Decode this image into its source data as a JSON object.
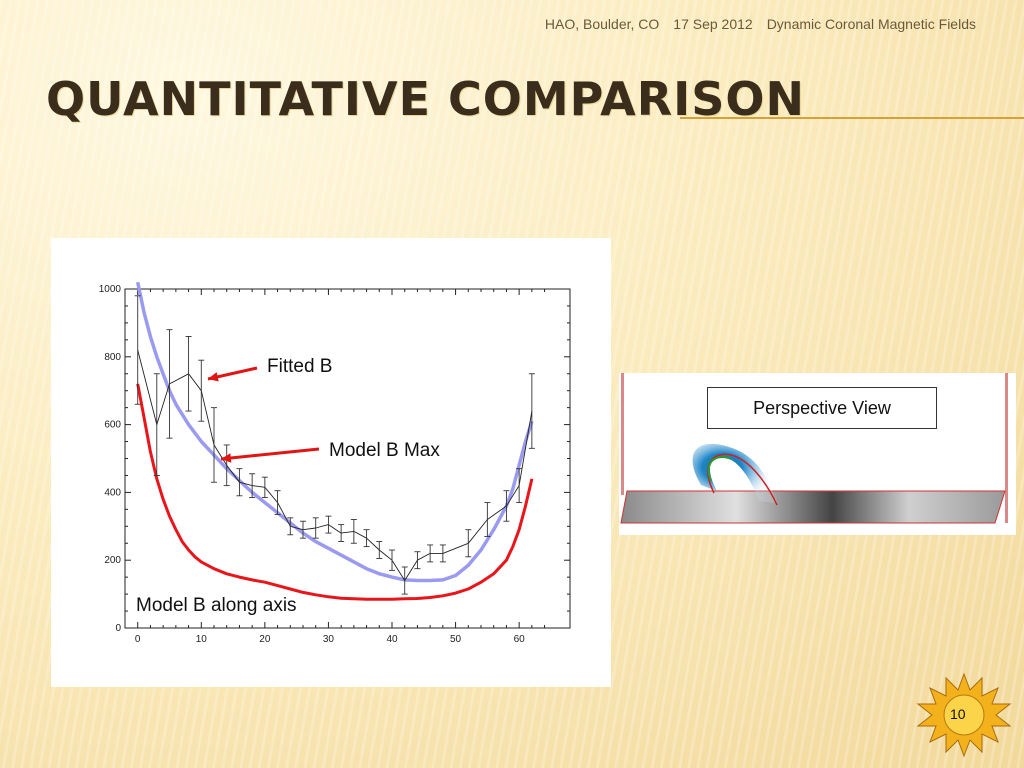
{
  "header": {
    "location": "HAO, Boulder, CO",
    "date": "17 Sep 2012",
    "event": "Dynamic Coronal Magnetic Fields"
  },
  "title": "Quantitative Comparison",
  "colors": {
    "accent_rule": "#d5a23a",
    "title": "#3a2d1c",
    "model_max": "#9a9af0",
    "model_axis": "#e8161b",
    "fitted": "#222222",
    "arrow": "#e01515"
  },
  "annotations": {
    "fitted_b": "Fitted B",
    "model_b_max": "Model B Max",
    "model_b_along_axis": "Model B along axis"
  },
  "perspective": {
    "label": "Perspective View"
  },
  "page_number": "10",
  "chart_data": {
    "type": "line",
    "title": "",
    "xlabel": "",
    "ylabel": "",
    "xlim": [
      -2,
      68
    ],
    "ylim": [
      0,
      1000
    ],
    "x_ticks": [
      0,
      10,
      20,
      30,
      40,
      50,
      60
    ],
    "y_ticks": [
      0,
      200,
      400,
      600,
      800,
      1000
    ],
    "grid": false,
    "series": [
      {
        "key": "model_max",
        "color": "#9a9af0",
        "x": [
          0,
          1,
          2,
          3,
          4,
          5,
          6,
          8,
          10,
          12,
          14,
          16,
          18,
          20,
          22,
          24,
          26,
          28,
          30,
          32,
          34,
          36,
          38,
          40,
          42,
          44,
          46,
          48,
          50,
          52,
          54,
          56,
          58,
          59,
          60,
          61,
          62
        ],
        "y": [
          1020,
          930,
          860,
          800,
          750,
          700,
          660,
          600,
          550,
          510,
          470,
          435,
          400,
          370,
          340,
          310,
          280,
          255,
          235,
          215,
          195,
          175,
          160,
          150,
          142,
          140,
          140,
          142,
          155,
          185,
          230,
          290,
          360,
          410,
          480,
          550,
          610
        ]
      },
      {
        "key": "model_axis",
        "color": "#e8161b",
        "x": [
          0,
          1,
          2,
          3,
          4,
          5,
          6,
          7,
          8,
          9,
          10,
          12,
          14,
          16,
          18,
          20,
          22,
          24,
          26,
          28,
          30,
          32,
          34,
          36,
          38,
          40,
          42,
          44,
          46,
          48,
          50,
          52,
          54,
          56,
          58,
          59,
          60,
          61,
          62
        ],
        "y": [
          720,
          620,
          520,
          440,
          380,
          330,
          290,
          255,
          230,
          210,
          195,
          175,
          160,
          150,
          142,
          135,
          125,
          115,
          105,
          98,
          92,
          88,
          86,
          85,
          85,
          85,
          86,
          87,
          90,
          95,
          103,
          115,
          135,
          160,
          200,
          240,
          290,
          360,
          440
        ]
      },
      {
        "key": "fitted",
        "color": "#222222",
        "x": [
          0,
          3,
          5,
          8,
          10,
          12,
          14,
          16,
          18,
          20,
          22,
          24,
          26,
          28,
          30,
          32,
          34,
          36,
          38,
          40,
          42,
          44,
          46,
          48,
          52,
          55,
          58,
          60,
          62
        ],
        "y": [
          820,
          600,
          720,
          750,
          700,
          540,
          480,
          430,
          420,
          415,
          370,
          300,
          290,
          295,
          305,
          280,
          285,
          265,
          230,
          200,
          140,
          200,
          220,
          220,
          250,
          320,
          360,
          420,
          640
        ]
      }
    ],
    "fitted_error": [
      160,
      150,
      160,
      110,
      90,
      110,
      60,
      40,
      35,
      30,
      35,
      25,
      25,
      30,
      25,
      25,
      35,
      25,
      25,
      30,
      40,
      25,
      25,
      25,
      40,
      50,
      45,
      50,
      110
    ]
  }
}
